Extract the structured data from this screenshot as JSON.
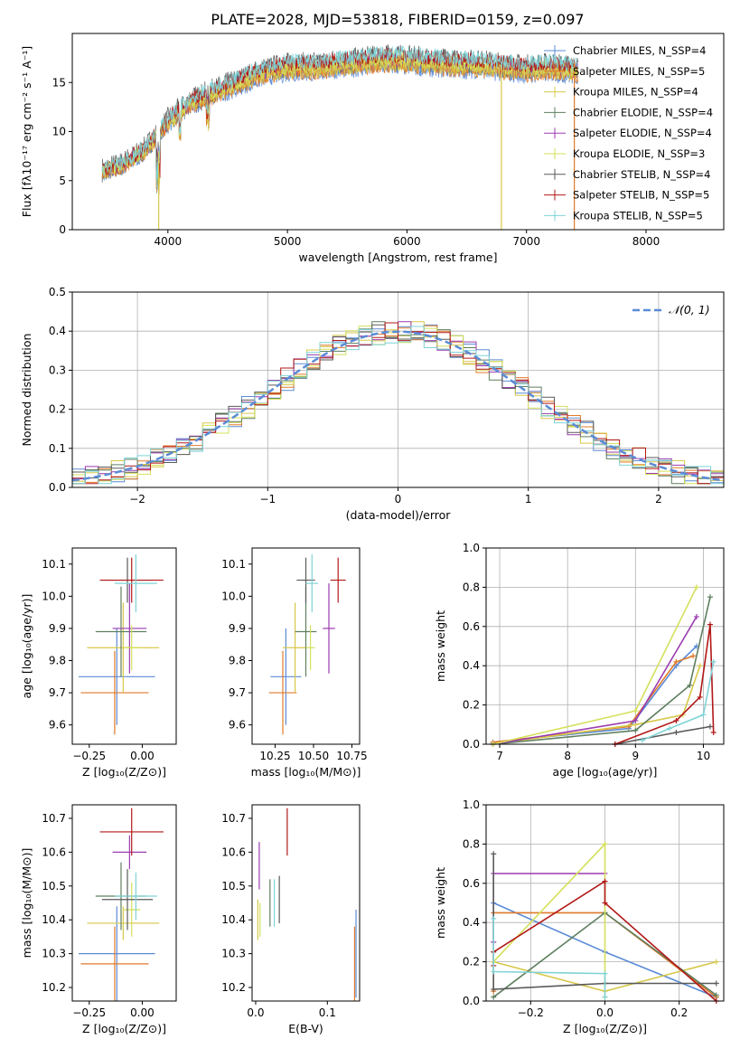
{
  "figure_title": "PLATE=2028, MJD=53818, FIBERID=0159, z=0.097",
  "colors": {
    "series": [
      "#5b8bd6",
      "#e07a2a",
      "#d7c84a",
      "#5f7f5f",
      "#9b3bb0",
      "#d4e05a",
      "#5a5a5a",
      "#b21818",
      "#7fd3d6"
    ],
    "grid": "#b0b0b0",
    "normal_line": "#5b8bd6"
  },
  "spectrum": {
    "xlabel": "wavelength [Angstrom, rest frame]",
    "ylabel": "Flux [fλ10⁻¹⁷ erg cm⁻² s⁻¹ A⁻¹]",
    "xticks": [
      "4000",
      "5000",
      "6000",
      "7000",
      "8000"
    ],
    "yticks": [
      "0",
      "5",
      "10",
      "15"
    ],
    "legend": [
      {
        "label": "Chabrier MILES, N_SSP=4"
      },
      {
        "label": "Salpeter MILES, N_SSP=5"
      },
      {
        "label": "Kroupa MILES, N_SSP=4"
      },
      {
        "label": "Chabrier ELODIE, N_SSP=4"
      },
      {
        "label": "Salpeter ELODIE, N_SSP=4"
      },
      {
        "label": "Kroupa ELODIE, N_SSP=3"
      },
      {
        "label": "Chabrier STELIB, N_SSP=4"
      },
      {
        "label": "Salpeter STELIB, N_SSP=5"
      },
      {
        "label": "Kroupa STELIB, N_SSP=5"
      }
    ]
  },
  "residuals": {
    "xlabel": "(data-model)/error",
    "ylabel": "Normed distribution",
    "xticks": [
      "−2",
      "−1",
      "0",
      "1",
      "2"
    ],
    "yticks": [
      "0.0",
      "0.1",
      "0.2",
      "0.3",
      "0.4",
      "0.5"
    ],
    "legend": "𝒩(0, 1)"
  },
  "panels": {
    "age_z": {
      "xlabel": "Z [log₁₀(Z/Z⊙)]",
      "ylabel": "age  [log₁₀(age/yr)]",
      "xticks": [
        "−0.25",
        "0.00"
      ],
      "yticks": [
        "9.6",
        "9.7",
        "9.8",
        "9.9",
        "10.0",
        "10.1"
      ]
    },
    "age_mass": {
      "xlabel": "mass [log₁₀(M/M⊙)]",
      "xticks": [
        "10.25",
        "10.50",
        "10.75"
      ],
      "yticks": [
        "9.6",
        "9.7",
        "9.8",
        "9.9",
        "10.0",
        "10.1"
      ]
    },
    "mw_age": {
      "xlabel": "age  [log₁₀(age/yr)]",
      "ylabel": "mass weight",
      "xticks": [
        "7",
        "8",
        "9",
        "10"
      ],
      "yticks": [
        "0.0",
        "0.2",
        "0.4",
        "0.6",
        "0.8",
        "1.0"
      ]
    },
    "mass_z": {
      "xlabel": "Z [log₁₀(Z/Z⊙)]",
      "ylabel": "mass [log₁₀(M/M⊙)]",
      "xticks": [
        "−0.25",
        "0.00"
      ],
      "yticks": [
        "10.2",
        "10.3",
        "10.4",
        "10.5",
        "10.6",
        "10.7"
      ]
    },
    "mass_ebv": {
      "xlabel": "E(B-V)",
      "xticks": [
        "0.0",
        "0.1"
      ],
      "yticks": [
        "10.2",
        "10.3",
        "10.4",
        "10.5",
        "10.6",
        "10.7"
      ]
    },
    "mw_z": {
      "xlabel": "Z [log₁₀(Z/Z⊙)]",
      "ylabel": "mass weight",
      "xticks": [
        "−0.2",
        "0.0",
        "0.2"
      ],
      "yticks": [
        "0.0",
        "0.2",
        "0.4",
        "0.6",
        "0.8",
        "1.0"
      ]
    }
  },
  "chart_data": [
    {
      "type": "line",
      "title": "PLATE=2028, MJD=53818, FIBERID=0159, z=0.097",
      "xlabel": "wavelength [Angstrom, rest frame]",
      "ylabel": "Flux [fλ10⁻¹⁷ erg cm⁻² s⁻¹ A⁻¹]",
      "xlim": [
        3200,
        8650
      ],
      "ylim": [
        0,
        20
      ],
      "x": [
        3450,
        3600,
        3800,
        4000,
        4200,
        4400,
        4600,
        4800,
        5000,
        5200,
        5400,
        5600,
        5800,
        6000,
        6200,
        6400,
        6600,
        6800,
        7000,
        7200,
        7400
      ],
      "y": [
        6,
        6.5,
        8,
        11,
        13,
        14,
        15,
        16,
        16.5,
        16.5,
        16.8,
        17,
        17.3,
        17.2,
        17,
        16.8,
        16.8,
        16.5,
        16.3,
        16.5,
        16.2
      ],
      "series": [
        {
          "name": "Chabrier MILES, N_SSP=4"
        },
        {
          "name": "Salpeter MILES, N_SSP=5"
        },
        {
          "name": "Kroupa MILES, N_SSP=4"
        },
        {
          "name": "Chabrier ELODIE, N_SSP=4"
        },
        {
          "name": "Salpeter ELODIE, N_SSP=4"
        },
        {
          "name": "Kroupa ELODIE, N_SSP=3"
        },
        {
          "name": "Chabrier STELIB, N_SSP=4"
        },
        {
          "name": "Salpeter STELIB, N_SSP=5"
        },
        {
          "name": "Kroupa STELIB, N_SSP=5"
        }
      ],
      "grid": false,
      "legend_position": "right"
    },
    {
      "type": "line",
      "xlabel": "(data-model)/error",
      "ylabel": "Normed distribution",
      "xlim": [
        -2.5,
        2.5
      ],
      "ylim": [
        0,
        0.5
      ],
      "grid": true,
      "legend_position": "top-right",
      "normal_curve": {
        "name": "𝒩(0, 1)",
        "mean": 0,
        "sigma": 1
      },
      "histogram_step": 0.1
    },
    {
      "type": "scatter",
      "xlabel": "Z [log₁₀(Z/Z⊙)]",
      "ylabel": "age  [log₁₀(age/yr)]",
      "xlim": [
        -0.33,
        0.16
      ],
      "ylim": [
        9.54,
        10.15
      ],
      "points": [
        {
          "x": -0.12,
          "y": 9.75,
          "xerr": 0.18,
          "yerr": 0.15
        },
        {
          "x": -0.13,
          "y": 9.7,
          "xerr": 0.16,
          "yerr": 0.13
        },
        {
          "x": -0.09,
          "y": 9.84,
          "xerr": 0.17,
          "yerr": 0.14
        },
        {
          "x": -0.1,
          "y": 9.89,
          "xerr": 0.12,
          "yerr": 0.14
        },
        {
          "x": -0.06,
          "y": 9.9,
          "xerr": 0.08,
          "yerr": 0.14
        },
        {
          "x": -0.05,
          "y": 9.84,
          "xerr": 0.04,
          "yerr": 0.07
        },
        {
          "x": -0.07,
          "y": 10.05,
          "xerr": 0.12,
          "yerr": 0.07
        },
        {
          "x": -0.05,
          "y": 10.05,
          "xerr": 0.15,
          "yerr": 0.07
        },
        {
          "x": -0.03,
          "y": 10.04,
          "xerr": 0.1,
          "yerr": 0.09
        }
      ]
    },
    {
      "type": "scatter",
      "xlabel": "mass [log₁₀(M/M⊙)]",
      "ylabel": "",
      "xlim": [
        10.1,
        10.8
      ],
      "ylim": [
        9.54,
        10.15
      ],
      "points": [
        {
          "x": 10.32,
          "y": 9.75,
          "xerr": 0.1,
          "yerr": 0.15
        },
        {
          "x": 10.3,
          "y": 9.7,
          "xerr": 0.09,
          "yerr": 0.13
        },
        {
          "x": 10.38,
          "y": 9.84,
          "xerr": 0.08,
          "yerr": 0.14
        },
        {
          "x": 10.45,
          "y": 9.89,
          "xerr": 0.07,
          "yerr": 0.14
        },
        {
          "x": 10.6,
          "y": 9.9,
          "xerr": 0.04,
          "yerr": 0.14
        },
        {
          "x": 10.48,
          "y": 9.84,
          "xerr": 0.03,
          "yerr": 0.07
        },
        {
          "x": 10.45,
          "y": 10.05,
          "xerr": 0.06,
          "yerr": 0.07
        },
        {
          "x": 10.66,
          "y": 10.05,
          "xerr": 0.05,
          "yerr": 0.07
        },
        {
          "x": 10.49,
          "y": 10.04,
          "xerr": 0.04,
          "yerr": 0.09
        }
      ]
    },
    {
      "type": "line",
      "xlabel": "age  [log₁₀(age/yr)]",
      "ylabel": "mass weight",
      "xlim": [
        6.8,
        10.3
      ],
      "ylim": [
        0,
        1
      ],
      "grid": true,
      "series": [
        {
          "x": [
            6.9,
            8.9,
            9.6,
            9.9
          ],
          "y": [
            0.01,
            0.08,
            0.4,
            0.5
          ]
        },
        {
          "x": [
            6.9,
            8.9,
            9.6,
            9.85
          ],
          "y": [
            0.01,
            0.09,
            0.42,
            0.45
          ]
        },
        {
          "x": [
            6.9,
            9.0,
            9.7,
            9.95
          ],
          "y": [
            0.0,
            0.1,
            0.15,
            0.4
          ]
        },
        {
          "x": [
            6.9,
            9.0,
            9.8,
            10.1
          ],
          "y": [
            0.0,
            0.07,
            0.3,
            0.75
          ]
        },
        {
          "x": [
            6.9,
            9.0,
            9.9
          ],
          "y": [
            0.0,
            0.12,
            0.65
          ]
        },
        {
          "x": [
            6.9,
            9.0,
            9.9
          ],
          "y": [
            0.0,
            0.17,
            0.8
          ]
        },
        {
          "x": [
            8.7,
            9.6,
            10.1
          ],
          "y": [
            0.0,
            0.06,
            0.09
          ]
        },
        {
          "x": [
            8.7,
            9.6,
            9.95,
            10.1,
            10.15
          ],
          "y": [
            0.0,
            0.12,
            0.24,
            0.61,
            0.06
          ]
        },
        {
          "x": [
            9.1,
            9.5,
            10.0,
            10.15
          ],
          "y": [
            0.02,
            0.08,
            0.15,
            0.42
          ]
        }
      ]
    },
    {
      "type": "scatter",
      "xlabel": "Z [log₁₀(Z/Z⊙)]",
      "ylabel": "mass [log₁₀(M/M⊙)]",
      "xlim": [
        -0.33,
        0.16
      ],
      "ylim": [
        10.16,
        10.74
      ],
      "points": [
        {
          "x": -0.12,
          "y": 10.3,
          "xerr": 0.18,
          "yerr": 0.14
        },
        {
          "x": -0.13,
          "y": 10.27,
          "xerr": 0.16,
          "yerr": 0.11
        },
        {
          "x": -0.09,
          "y": 10.39,
          "xerr": 0.17,
          "yerr": 0.05
        },
        {
          "x": -0.1,
          "y": 10.47,
          "xerr": 0.12,
          "yerr": 0.1
        },
        {
          "x": -0.06,
          "y": 10.6,
          "xerr": 0.08,
          "yerr": 0.05
        },
        {
          "x": -0.05,
          "y": 10.43,
          "xerr": 0.04,
          "yerr": 0.08
        },
        {
          "x": -0.07,
          "y": 10.46,
          "xerr": 0.12,
          "yerr": 0.09
        },
        {
          "x": -0.05,
          "y": 10.66,
          "xerr": 0.15,
          "yerr": 0.07
        },
        {
          "x": -0.03,
          "y": 10.47,
          "xerr": 0.1,
          "yerr": 0.07
        }
      ]
    },
    {
      "type": "scatter",
      "xlabel": "E(B-V)",
      "ylabel": "",
      "xlim": [
        -0.005,
        0.145
      ],
      "ylim": [
        10.16,
        10.74
      ],
      "points": [
        {
          "x": 0.14,
          "y": 10.3,
          "xerr": 0.0,
          "yerr": 0.13
        },
        {
          "x": 0.138,
          "y": 10.27,
          "xerr": 0.0,
          "yerr": 0.11
        },
        {
          "x": 0.003,
          "y": 10.4,
          "xerr": 0.0,
          "yerr": 0.06
        },
        {
          "x": 0.02,
          "y": 10.45,
          "xerr": 0.0,
          "yerr": 0.07
        },
        {
          "x": 0.005,
          "y": 10.56,
          "xerr": 0.0,
          "yerr": 0.07
        },
        {
          "x": 0.006,
          "y": 10.4,
          "xerr": 0.0,
          "yerr": 0.05
        },
        {
          "x": 0.033,
          "y": 10.46,
          "xerr": 0.0,
          "yerr": 0.07
        },
        {
          "x": 0.044,
          "y": 10.66,
          "xerr": 0.0,
          "yerr": 0.07
        },
        {
          "x": 0.026,
          "y": 10.45,
          "xerr": 0.0,
          "yerr": 0.07
        }
      ]
    },
    {
      "type": "line",
      "xlabel": "Z [log₁₀(Z/Z⊙)]",
      "ylabel": "mass weight",
      "xlim": [
        -0.32,
        0.32
      ],
      "ylim": [
        0,
        1
      ],
      "grid": true,
      "series": [
        {
          "x": [
            -0.3,
            0.0,
            0.3
          ],
          "y": [
            0.5,
            0.25,
            0.02
          ]
        },
        {
          "x": [
            -0.3,
            -0.3,
            0.0,
            0.3
          ],
          "y": [
            0.05,
            0.45,
            0.45,
            0.02
          ]
        },
        {
          "x": [
            -0.3,
            0.0,
            0.3
          ],
          "y": [
            0.2,
            0.05,
            0.2
          ]
        },
        {
          "x": [
            -0.3,
            0.0,
            0.3
          ],
          "y": [
            0.02,
            0.45,
            0.03
          ]
        },
        {
          "x": [
            -0.3,
            -0.3,
            0.0
          ],
          "y": [
            0.3,
            0.65,
            0.65
          ]
        },
        {
          "x": [
            -0.3,
            0.0,
            0.0
          ],
          "y": [
            0.2,
            0.8,
            0.02
          ]
        },
        {
          "x": [
            -0.3,
            -0.3,
            0.0,
            0.3
          ],
          "y": [
            0.75,
            0.06,
            0.09,
            0.09
          ]
        },
        {
          "x": [
            -0.3,
            -0.3,
            0.0,
            0.0,
            0.3
          ],
          "y": [
            0.18,
            0.25,
            0.61,
            0.5,
            0.0
          ]
        },
        {
          "x": [
            -0.3,
            -0.3,
            0.0,
            0.0
          ],
          "y": [
            0.42,
            0.15,
            0.14,
            0.02
          ]
        }
      ]
    }
  ]
}
